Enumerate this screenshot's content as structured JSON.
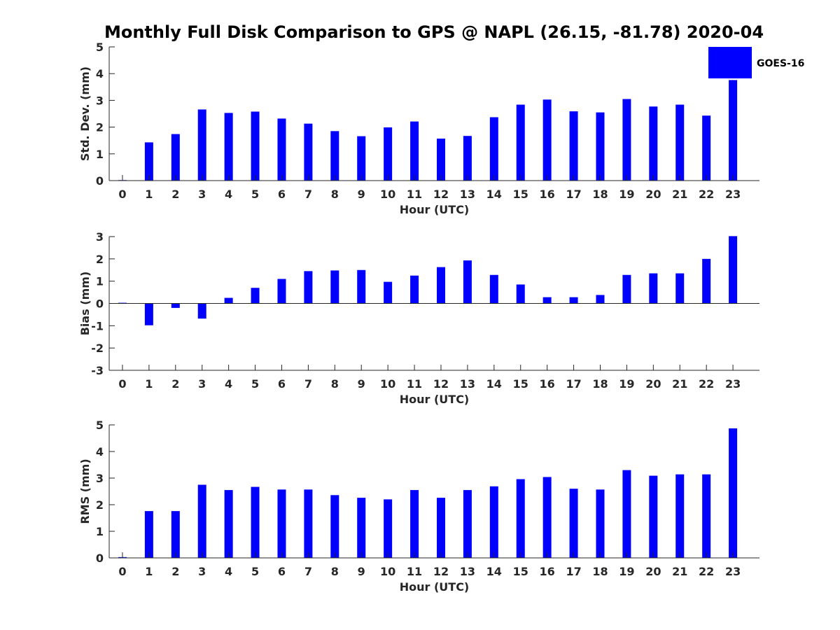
{
  "figure_title": "Monthly Full Disk Comparison to GPS @ NAPL (26.15, -81.78) 2020-04",
  "colors": {
    "bar": "#0000ff",
    "axis": "#262626"
  },
  "legend": {
    "label": "GOES-16",
    "placement": "top-right"
  },
  "chart_data": [
    {
      "type": "bar",
      "title": "",
      "xlabel": "Hour (UTC)",
      "ylabel": "Std. Dev. (mm)",
      "ylim": [
        0,
        5
      ],
      "yticks": [
        0,
        1,
        2,
        3,
        4,
        5
      ],
      "categories": [
        "0",
        "1",
        "2",
        "3",
        "4",
        "5",
        "6",
        "7",
        "8",
        "9",
        "10",
        "11",
        "12",
        "13",
        "14",
        "15",
        "16",
        "17",
        "18",
        "19",
        "20",
        "21",
        "22",
        "23"
      ],
      "series": [
        {
          "name": "GOES-16",
          "values": [
            0.02,
            1.43,
            1.74,
            2.66,
            2.53,
            2.58,
            2.32,
            2.13,
            1.85,
            1.66,
            1.99,
            2.21,
            1.57,
            1.67,
            2.37,
            2.84,
            3.03,
            2.59,
            2.55,
            3.05,
            2.77,
            2.84,
            2.43,
            3.76
          ]
        }
      ],
      "grid": false
    },
    {
      "type": "bar",
      "title": "",
      "xlabel": "Hour (UTC)",
      "ylabel": "Bias (mm)",
      "ylim": [
        -3,
        3
      ],
      "yticks": [
        -3,
        -2,
        -1,
        0,
        1,
        2,
        3
      ],
      "categories": [
        "0",
        "1",
        "2",
        "3",
        "4",
        "5",
        "6",
        "7",
        "8",
        "9",
        "10",
        "11",
        "12",
        "13",
        "14",
        "15",
        "16",
        "17",
        "18",
        "19",
        "20",
        "21",
        "22",
        "23"
      ],
      "series": [
        {
          "name": "GOES-16",
          "values": [
            0.03,
            -0.98,
            -0.2,
            -0.68,
            0.25,
            0.7,
            1.1,
            1.45,
            1.48,
            1.5,
            0.97,
            1.25,
            1.63,
            1.93,
            1.28,
            0.85,
            0.28,
            0.28,
            0.38,
            1.28,
            1.35,
            1.35,
            2.0,
            3.02
          ]
        }
      ],
      "grid": false
    },
    {
      "type": "bar",
      "title": "",
      "xlabel": "Hour (UTC)",
      "ylabel": "RMS (mm)",
      "ylim": [
        0,
        5
      ],
      "yticks": [
        0,
        1,
        2,
        3,
        4,
        5
      ],
      "categories": [
        "0",
        "1",
        "2",
        "3",
        "4",
        "5",
        "6",
        "7",
        "8",
        "9",
        "10",
        "11",
        "12",
        "13",
        "14",
        "15",
        "16",
        "17",
        "18",
        "19",
        "20",
        "21",
        "22",
        "23"
      ],
      "series": [
        {
          "name": "GOES-16",
          "values": [
            0.03,
            1.76,
            1.76,
            2.75,
            2.55,
            2.67,
            2.57,
            2.57,
            2.36,
            2.26,
            2.2,
            2.55,
            2.26,
            2.55,
            2.69,
            2.96,
            3.04,
            2.6,
            2.57,
            3.3,
            3.09,
            3.14,
            3.14,
            4.87
          ]
        }
      ],
      "grid": false
    }
  ]
}
